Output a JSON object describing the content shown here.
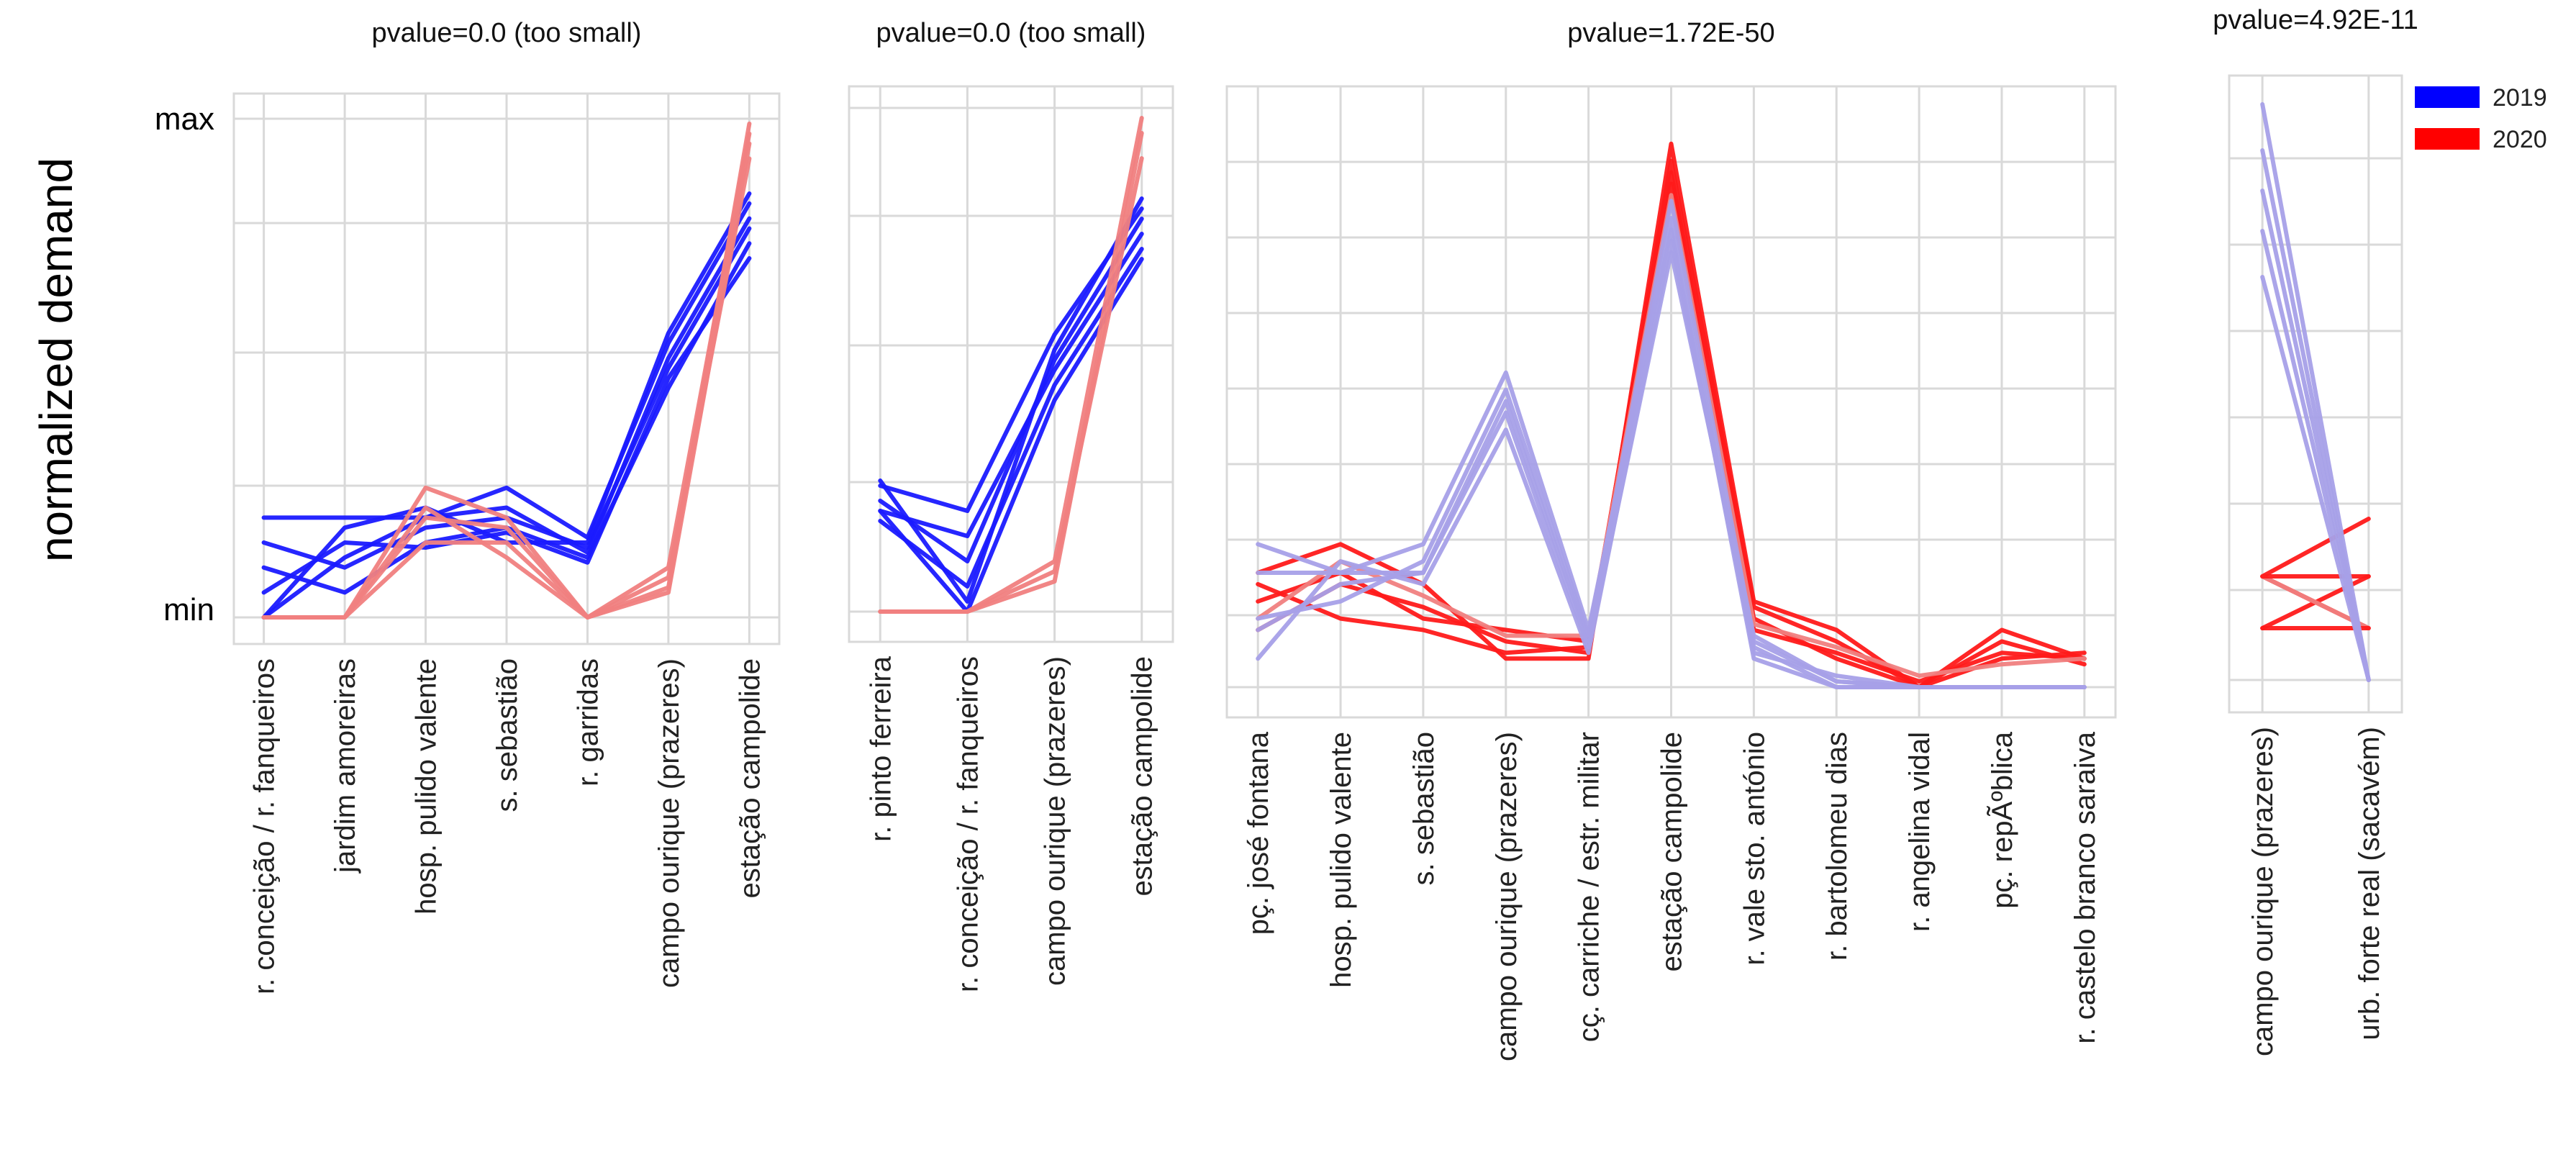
{
  "figure": {
    "ylabel": "normalized demand",
    "ytick_max": "max",
    "ytick_min": "min",
    "legend": {
      "placement": "top-right",
      "entries": [
        {
          "label": "2019",
          "color": "#0000ff"
        },
        {
          "label": "2020",
          "color": "#ff0000"
        }
      ]
    }
  },
  "chart_data": [
    {
      "type": "line",
      "title": "pvalue=0.0 (too small)",
      "categories": [
        "r. conceição / r. fanqueiros",
        "jardim amoreiras",
        "hosp. pulido valente",
        "s. sebastião",
        "r. garridas",
        "campo ourique (prazeres)",
        "estação campolide"
      ],
      "ylim": [
        0,
        1
      ],
      "grid": true,
      "series": [
        {
          "group": "2019",
          "color": "#1a1aff",
          "values": [
            0.2,
            0.2,
            0.2,
            0.26,
            0.16,
            0.55,
            0.83
          ]
        },
        {
          "group": "2019",
          "color": "#1a1aff",
          "values": [
            0.15,
            0.1,
            0.18,
            0.2,
            0.14,
            0.5,
            0.78
          ]
        },
        {
          "group": "2019",
          "color": "#1a1aff",
          "values": [
            0.1,
            0.05,
            0.15,
            0.18,
            0.12,
            0.46,
            0.75
          ]
        },
        {
          "group": "2019",
          "color": "#1a1aff",
          "values": [
            0.05,
            0.15,
            0.14,
            0.17,
            0.11,
            0.48,
            0.72
          ]
        },
        {
          "group": "2019",
          "color": "#1a1aff",
          "values": [
            0.0,
            0.12,
            0.2,
            0.22,
            0.13,
            0.52,
            0.8
          ]
        },
        {
          "group": "2019",
          "color": "#1a1aff",
          "values": [
            0.0,
            0.18,
            0.22,
            0.15,
            0.15,
            0.57,
            0.85
          ]
        },
        {
          "group": "2020",
          "color": "#f08080",
          "values": [
            0.0,
            0.0,
            0.26,
            0.2,
            0.0,
            0.1,
            0.97
          ]
        },
        {
          "group": "2020",
          "color": "#f08080",
          "values": [
            0.0,
            0.0,
            0.2,
            0.18,
            0.0,
            0.05,
            0.95
          ]
        },
        {
          "group": "2020",
          "color": "#f08080",
          "values": [
            0.0,
            0.0,
            0.15,
            0.15,
            0.0,
            0.08,
            0.92
          ]
        },
        {
          "group": "2020",
          "color": "#f08080",
          "values": [
            0.0,
            0.0,
            0.22,
            0.12,
            0.0,
            0.06,
            0.99
          ]
        }
      ]
    },
    {
      "type": "line",
      "title": "pvalue=0.0 (too small)",
      "categories": [
        "r. pinto ferreira",
        "r. conceição / r. fanqueiros",
        "campo ourique (prazeres)",
        "estação campolide"
      ],
      "ylim": [
        0,
        1
      ],
      "grid": true,
      "series": [
        {
          "group": "2019",
          "color": "#1a1aff",
          "values": [
            0.25,
            0.2,
            0.55,
            0.8
          ]
        },
        {
          "group": "2019",
          "color": "#1a1aff",
          "values": [
            0.2,
            0.15,
            0.48,
            0.75
          ]
        },
        {
          "group": "2019",
          "color": "#1a1aff",
          "values": [
            0.22,
            0.1,
            0.5,
            0.78
          ]
        },
        {
          "group": "2019",
          "color": "#1a1aff",
          "values": [
            0.18,
            0.05,
            0.45,
            0.72
          ]
        },
        {
          "group": "2019",
          "color": "#1a1aff",
          "values": [
            0.2,
            0.0,
            0.42,
            0.7
          ]
        },
        {
          "group": "2019",
          "color": "#1a1aff",
          "values": [
            0.26,
            0.02,
            0.52,
            0.82
          ]
        },
        {
          "group": "2020",
          "color": "#f08080",
          "values": [
            0.0,
            0.0,
            0.1,
            0.98
          ]
        },
        {
          "group": "2020",
          "color": "#f08080",
          "values": [
            0.0,
            0.0,
            0.06,
            0.95
          ]
        },
        {
          "group": "2020",
          "color": "#f08080",
          "values": [
            0.0,
            0.0,
            0.08,
            0.9
          ]
        }
      ]
    },
    {
      "type": "line",
      "title": "pvalue=1.72E-50",
      "categories": [
        "pç. josé fontana",
        "hosp. pulido valente",
        "s. sebastião",
        "campo ourique (prazeres)",
        "cç. carriche / estr. militar",
        "estação campolide",
        "r. vale sto. antónio",
        "r. bartolomeu dias",
        "r. angelina vidal",
        "pç. repÃºblica",
        "r. castelo branco saraiva"
      ],
      "ylim": [
        0,
        1
      ],
      "grid": true,
      "series": [
        {
          "group": "2020",
          "color": "#ff1a1a",
          "values": [
            0.2,
            0.25,
            0.18,
            0.05,
            0.05,
            0.95,
            0.15,
            0.1,
            0.0,
            0.1,
            0.05
          ]
        },
        {
          "group": "2020",
          "color": "#ff1a1a",
          "values": [
            0.15,
            0.2,
            0.12,
            0.1,
            0.08,
            0.9,
            0.12,
            0.05,
            0.0,
            0.05,
            0.06
          ]
        },
        {
          "group": "2020",
          "color": "#ff1a1a",
          "values": [
            0.1,
            0.18,
            0.14,
            0.08,
            0.06,
            0.88,
            0.1,
            0.06,
            0.01,
            0.06,
            0.05
          ]
        },
        {
          "group": "2020",
          "color": "#ff1a1a",
          "values": [
            0.18,
            0.12,
            0.1,
            0.06,
            0.07,
            0.92,
            0.14,
            0.08,
            0.0,
            0.08,
            0.04
          ]
        },
        {
          "group": "2020",
          "color": "#f08080",
          "values": [
            0.12,
            0.22,
            0.16,
            0.09,
            0.09,
            0.86,
            0.11,
            0.07,
            0.02,
            0.04,
            0.05
          ]
        },
        {
          "group": "2019",
          "color": "#a7a0e8",
          "values": [
            0.25,
            0.2,
            0.25,
            0.55,
            0.1,
            0.8,
            0.05,
            0.0,
            0.0,
            0.0,
            0.0
          ]
        },
        {
          "group": "2019",
          "color": "#a7a0e8",
          "values": [
            0.1,
            0.18,
            0.2,
            0.5,
            0.08,
            0.85,
            0.08,
            0.01,
            0.0,
            0.0,
            0.0
          ]
        },
        {
          "group": "2019",
          "color": "#a7a0e8",
          "values": [
            0.05,
            0.22,
            0.18,
            0.45,
            0.06,
            0.78,
            0.07,
            0.0,
            0.0,
            0.0,
            0.0
          ]
        },
        {
          "group": "2019",
          "color": "#a7a0e8",
          "values": [
            0.12,
            0.15,
            0.22,
            0.52,
            0.09,
            0.82,
            0.06,
            0.02,
            0.0,
            0.0,
            0.0
          ]
        },
        {
          "group": "2019",
          "color": "#a7a0e8",
          "values": [
            0.2,
            0.2,
            0.2,
            0.48,
            0.07,
            0.76,
            0.09,
            0.01,
            0.0,
            0.0,
            0.0
          ]
        }
      ]
    },
    {
      "type": "line",
      "title": "pvalue=4.92E-11",
      "categories": [
        "campo ourique (prazeres)",
        "urb. forte real (sacavém)"
      ],
      "ylim": [
        0,
        1
      ],
      "grid": true,
      "series": [
        {
          "group": "2020",
          "color": "#ff1a1a",
          "values": [
            0.18,
            0.28
          ]
        },
        {
          "group": "2020",
          "color": "#ff1a1a",
          "values": [
            0.09,
            0.18
          ]
        },
        {
          "group": "2020",
          "color": "#ff1a1a",
          "values": [
            0.18,
            0.09
          ]
        },
        {
          "group": "2020",
          "color": "#f08080",
          "values": [
            0.18,
            0.09
          ]
        },
        {
          "group": "2020",
          "color": "#ff1a1a",
          "values": [
            0.09,
            0.09
          ]
        },
        {
          "group": "2020",
          "color": "#ff1a1a",
          "values": [
            0.18,
            0.18
          ]
        },
        {
          "group": "2019",
          "color": "#a7a0e8",
          "values": [
            1.0,
            0.0
          ]
        },
        {
          "group": "2019",
          "color": "#a7a0e8",
          "values": [
            0.92,
            0.0
          ]
        },
        {
          "group": "2019",
          "color": "#a7a0e8",
          "values": [
            0.85,
            0.0
          ]
        },
        {
          "group": "2019",
          "color": "#a7a0e8",
          "values": [
            0.78,
            0.0
          ]
        },
        {
          "group": "2019",
          "color": "#a7a0e8",
          "values": [
            0.7,
            0.0
          ]
        }
      ]
    }
  ]
}
